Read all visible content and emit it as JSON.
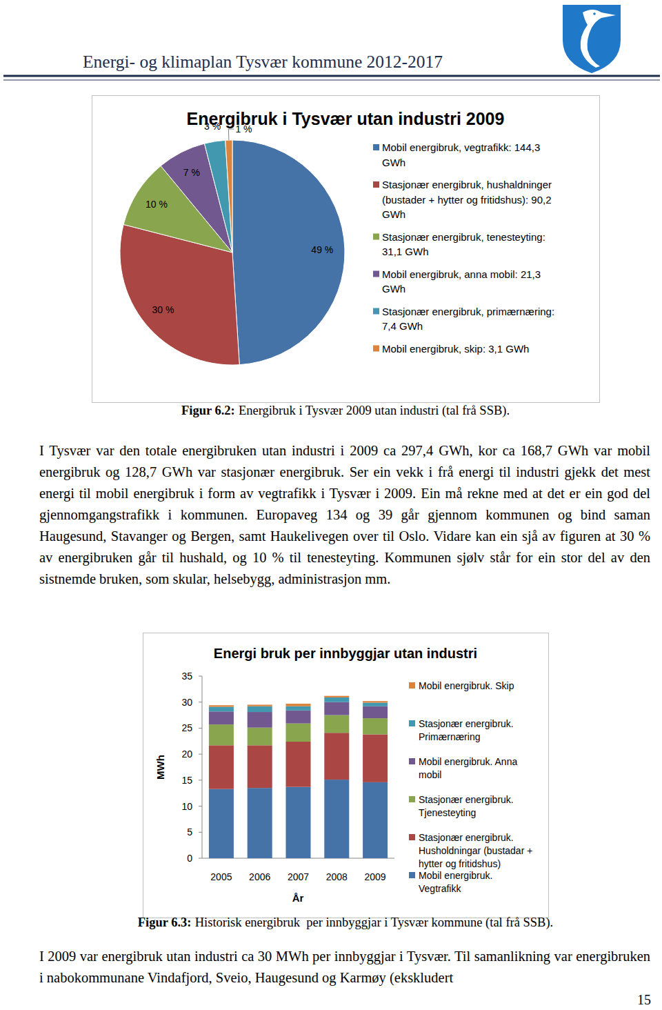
{
  "header": {
    "title": "Energi- og klimaplan Tysvær kommune 2012-2017"
  },
  "chart_data": [
    {
      "type": "pie",
      "title": "Energibruk i Tysvær utan industri 2009",
      "categories": [
        "Mobil energibruk, vegtrafikk: 144,3 GWh",
        "Stasjonær energibruk, hushaldninger (bustader + hytter og fritidshus): 90,2 GWh",
        "Stasjonær energibruk, tenesteyting: 31,1 GWh",
        "Mobil energibruk, anna mobil: 21,3 GWh",
        "Stasjonær energibruk, primærnæring: 7,4 GWh",
        "Mobil energibruk, skip: 3,1 GWh"
      ],
      "values": [
        49,
        30,
        10,
        7,
        3,
        1
      ],
      "value_labels": [
        "49 %",
        "30 %",
        "10 %",
        "7 %",
        "3 %",
        "1 %"
      ],
      "colors": [
        "#4572a7",
        "#aa4643",
        "#89a54e",
        "#71588f",
        "#4198af",
        "#db843d"
      ],
      "data_labels": true,
      "legend": "right"
    },
    {
      "type": "bar",
      "stacked": true,
      "title": "Energi bruk per innbyggjar utan industri",
      "xlabel": "År",
      "ylabel": "MWh",
      "categories": [
        "2005",
        "2006",
        "2007",
        "2008",
        "2009"
      ],
      "series": [
        {
          "name": "Mobil energibruk. Vegtrafikk",
          "color": "#4572a7",
          "values": [
            13.3,
            13.5,
            13.7,
            15.1,
            14.6
          ]
        },
        {
          "name": "Stasjonær energibruk. Husholdningar (bustadar + hytter og fritidshus)",
          "color": "#aa4643",
          "values": [
            8.4,
            8.2,
            8.7,
            9.0,
            9.2
          ]
        },
        {
          "name": "Stasjonær energibruk. Tjenesteyting",
          "color": "#89a54e",
          "values": [
            4.0,
            3.4,
            3.5,
            3.4,
            3.1
          ]
        },
        {
          "name": "Mobil energibruk. Anna mobil",
          "color": "#71588f",
          "values": [
            2.5,
            3.0,
            2.5,
            2.5,
            2.3
          ]
        },
        {
          "name": "Stasjonær energibruk. Primærnæring",
          "color": "#4198af",
          "values": [
            0.9,
            1.1,
            0.8,
            0.9,
            0.7
          ]
        },
        {
          "name": "Mobil energibruk. Skip",
          "color": "#db843d",
          "values": [
            0.3,
            0.3,
            0.5,
            0.3,
            0.3
          ]
        }
      ],
      "ylim": [
        0,
        35
      ],
      "yticks": [
        0,
        5,
        10,
        15,
        20,
        25,
        30,
        35
      ],
      "grid": false,
      "legend": "right"
    }
  ],
  "captions": [
    {
      "label": "Figur 6.2:",
      "text": "Energibruk i Tysvær 2009 utan industri (tal frå SSB)."
    },
    {
      "label": "Figur 6.3:",
      "text": "Historisk energibruk  per innbyggjar i Tysvær kommune (tal frå SSB)."
    }
  ],
  "paragraphs": [
    "I Tysvær var den totale energibruken utan industri i 2009 ca 297,4 GWh, kor ca 168,7 GWh var mobil energibruk og 128,7 GWh var stasjonær energibruk. Ser ein vekk i frå energi til industri gjekk det mest energi til mobil energibruk i form av vegtrafikk i Tysvær i 2009. Ein må rekne med at det er ein god del gjennomgangstrafikk i kommunen. Europaveg 134 og 39 går gjennom kommunen og bind saman Haugesund, Stavanger og Bergen, samt Haukelivegen over til Oslo. Vidare kan ein sjå av figuren at 30 % av energibruken går til hushald, og 10 % til tenesteyting. Kommunen sjølv står for ein stor del av den sistnemde bruken, som skular, helsebygg, administrasjon mm.",
    "I 2009 var energibruk utan industri ca 30 MWh per innbyggjar i Tysvær. Til samanlikning var energibruken i nabokommunane Vindafjord, Sveio, Haugesund og Karmøy (ekskludert"
  ],
  "page_number": 15
}
